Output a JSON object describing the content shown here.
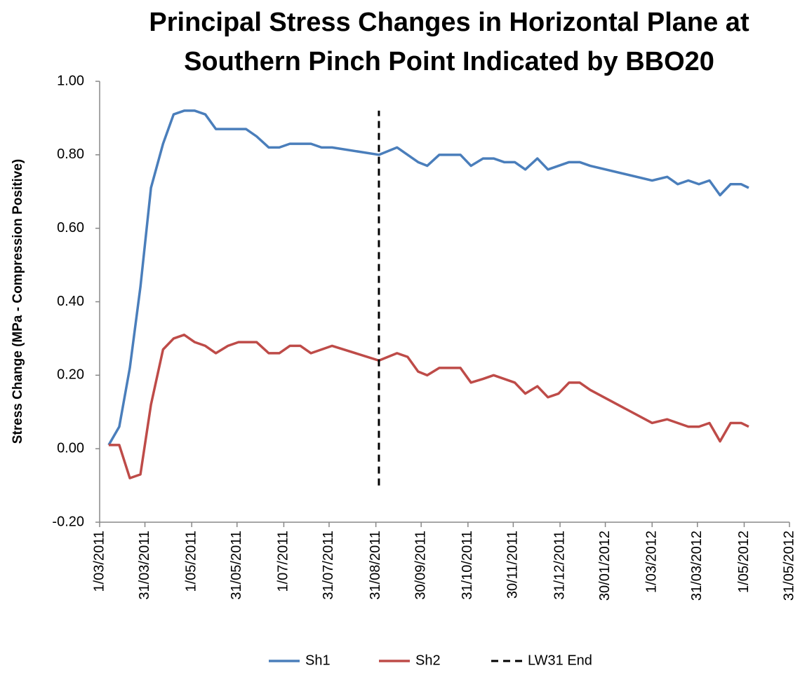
{
  "chart_data": {
    "type": "line",
    "title": [
      "Principal Stress Changes in Horizontal Plane at",
      "Southern Pinch Point Indicated by BBO20"
    ],
    "y_label": "Stress Change (MPa - Compression Positive)",
    "x": [
      "2011-03-07",
      "2011-03-14",
      "2011-03-21",
      "2011-03-28",
      "2011-04-04",
      "2011-04-12",
      "2011-04-19",
      "2011-04-26",
      "2011-05-03",
      "2011-05-10",
      "2011-05-17",
      "2011-05-25",
      "2011-06-01",
      "2011-06-06",
      "2011-06-13",
      "2011-06-21",
      "2011-06-28",
      "2011-07-05",
      "2011-07-12",
      "2011-07-19",
      "2011-07-26",
      "2011-08-02",
      "2011-09-02",
      "2011-09-14",
      "2011-09-21",
      "2011-09-28",
      "2011-10-04",
      "2011-10-12",
      "2011-10-19",
      "2011-10-26",
      "2011-11-02",
      "2011-11-10",
      "2011-11-17",
      "2011-11-24",
      "2011-12-01",
      "2011-12-08",
      "2011-12-16",
      "2011-12-23",
      "2011-12-30",
      "2012-01-06",
      "2012-01-13",
      "2012-01-20",
      "2012-03-01",
      "2012-03-11",
      "2012-03-18",
      "2012-03-25",
      "2012-04-01",
      "2012-04-08",
      "2012-04-15",
      "2012-04-22",
      "2012-04-29",
      "2012-05-04"
    ],
    "series": [
      {
        "name": "Sh1",
        "color": "#4a7ebb",
        "values": [
          0.01,
          0.06,
          0.22,
          0.44,
          0.71,
          0.83,
          0.91,
          0.92,
          0.92,
          0.91,
          0.87,
          0.87,
          0.87,
          0.87,
          0.85,
          0.82,
          0.82,
          0.83,
          0.83,
          0.83,
          0.82,
          0.82,
          0.8,
          0.82,
          0.8,
          0.78,
          0.77,
          0.8,
          0.8,
          0.8,
          0.77,
          0.79,
          0.79,
          0.78,
          0.78,
          0.76,
          0.79,
          0.76,
          0.77,
          0.78,
          0.78,
          0.77,
          0.73,
          0.74,
          0.72,
          0.73,
          0.72,
          0.73,
          0.69,
          0.72,
          0.72,
          0.71
        ]
      },
      {
        "name": "Sh2",
        "color": "#be4b48",
        "values": [
          0.01,
          0.01,
          -0.08,
          -0.07,
          0.12,
          0.27,
          0.3,
          0.31,
          0.29,
          0.28,
          0.26,
          0.28,
          0.29,
          0.29,
          0.29,
          0.26,
          0.26,
          0.28,
          0.28,
          0.26,
          0.27,
          0.28,
          0.24,
          0.26,
          0.25,
          0.21,
          0.2,
          0.22,
          0.22,
          0.22,
          0.18,
          0.19,
          0.2,
          0.19,
          0.18,
          0.15,
          0.17,
          0.14,
          0.15,
          0.18,
          0.18,
          0.16,
          0.07,
          0.08,
          0.07,
          0.06,
          0.06,
          0.07,
          0.02,
          0.07,
          0.07,
          0.06
        ]
      },
      {
        "name": "LW31 End",
        "color": "#000000",
        "dashed": true,
        "x": [
          "2011-09-02",
          "2011-09-02"
        ],
        "values": [
          -0.1,
          0.92
        ]
      }
    ],
    "xlim": [
      "2011-03-01",
      "2012-05-31"
    ],
    "xticks": [
      {
        "value": "2011-03-01",
        "label": "1/03/2011"
      },
      {
        "value": "2011-03-31",
        "label": "31/03/2011"
      },
      {
        "value": "2011-05-01",
        "label": "1/05/2011"
      },
      {
        "value": "2011-05-31",
        "label": "31/05/2011"
      },
      {
        "value": "2011-07-01",
        "label": "1/07/2011"
      },
      {
        "value": "2011-07-31",
        "label": "31/07/2011"
      },
      {
        "value": "2011-08-31",
        "label": "31/08/2011"
      },
      {
        "value": "2011-09-30",
        "label": "30/09/2011"
      },
      {
        "value": "2011-10-31",
        "label": "31/10/2011"
      },
      {
        "value": "2011-11-30",
        "label": "30/11/2011"
      },
      {
        "value": "2011-12-31",
        "label": "31/12/2011"
      },
      {
        "value": "2012-01-30",
        "label": "30/01/2012"
      },
      {
        "value": "2012-03-01",
        "label": "1/03/2012"
      },
      {
        "value": "2012-03-31",
        "label": "31/03/2012"
      },
      {
        "value": "2012-05-01",
        "label": "1/05/2012"
      },
      {
        "value": "2012-05-31",
        "label": "31/05/2012"
      }
    ],
    "ylim": [
      -0.2,
      1.0
    ],
    "yticks": [
      {
        "value": -0.2,
        "label": "-0.20"
      },
      {
        "value": 0,
        "label": "0.00"
      },
      {
        "value": 0.2,
        "label": "0.20"
      },
      {
        "value": 0.4,
        "label": "0.40"
      },
      {
        "value": 0.6,
        "label": "0.60"
      },
      {
        "value": 0.8,
        "label": "0.80"
      },
      {
        "value": 1.0,
        "label": "1.00"
      }
    ],
    "grid": false,
    "legend": "bottom"
  }
}
